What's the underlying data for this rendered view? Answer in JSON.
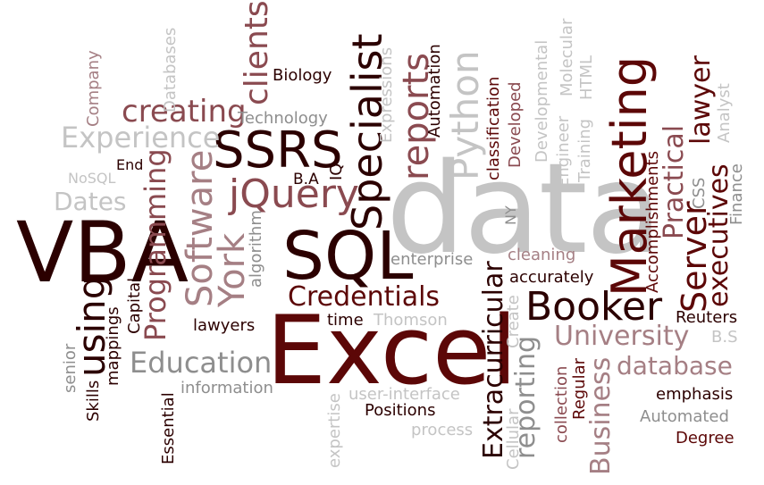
{
  "words": {
    "data": "data",
    "excel": "Excel",
    "vba": "VBA",
    "sql": "SQL",
    "ssrs": "SSRS",
    "marketing": "Marketing",
    "specialist": "Specialist",
    "booker": "Booker",
    "jquery": "jQuery",
    "software": "Software",
    "york": "York",
    "using": "using",
    "reports": "reports",
    "python": "Python",
    "server": "Server",
    "credentials": "Credentials",
    "education": "Education",
    "university": "University",
    "database": "database",
    "programming": "Programming",
    "creating": "creating",
    "experience": "Experience",
    "extracurricular": "Extracurricular",
    "reporting": "reporting",
    "business": "Business",
    "executives": "executives",
    "practical": "Practical",
    "lawyer": "lawyer",
    "clients": "clients",
    "biology": "Biology",
    "technology": "Technology",
    "dates": "Dates",
    "nosql": "NoSQL",
    "end": "End",
    "company": "Company",
    "databases": "Databases",
    "ba": "B.A",
    "iq": "IQ",
    "expressions": "Expressions",
    "automation": "Automation",
    "classification": "classification",
    "developed": "Developed",
    "developmental": "Developmental",
    "engineer": "Engineer",
    "molecular": "Molecular",
    "training": "Training",
    "html": "HTML",
    "accomplishments": "Accomplishments",
    "css": "CSS",
    "finance": "Finance",
    "analyst": "Analyst",
    "ny": "NY",
    "enterprise": "enterprise",
    "cleaning": "cleaning",
    "accurately": "accurately",
    "algorithm": "algorithm",
    "capital": "Capital",
    "mappings": "mappings",
    "senior": "senior",
    "skills": "Skills",
    "essential": "Essential",
    "lawyers": "lawyers",
    "time": "time",
    "thomson": "Thomson",
    "reuters": "Reuters",
    "bs": "B.S",
    "information": "information",
    "user_interface": "user-interface",
    "positions": "Positions",
    "process": "process",
    "expertise": "expertise",
    "create": "Create",
    "cellular": "Cellular",
    "collection": "collection",
    "regular": "Regular",
    "emphasis": "emphasis",
    "automated": "Automated",
    "degree": "Degree"
  },
  "colors": {
    "black": "#2b0000",
    "dark": "#5c0707",
    "mid": "#8a4a50",
    "rose": "#a57f84",
    "grey": "#8e8e8e",
    "light": "#c4c4c4"
  }
}
